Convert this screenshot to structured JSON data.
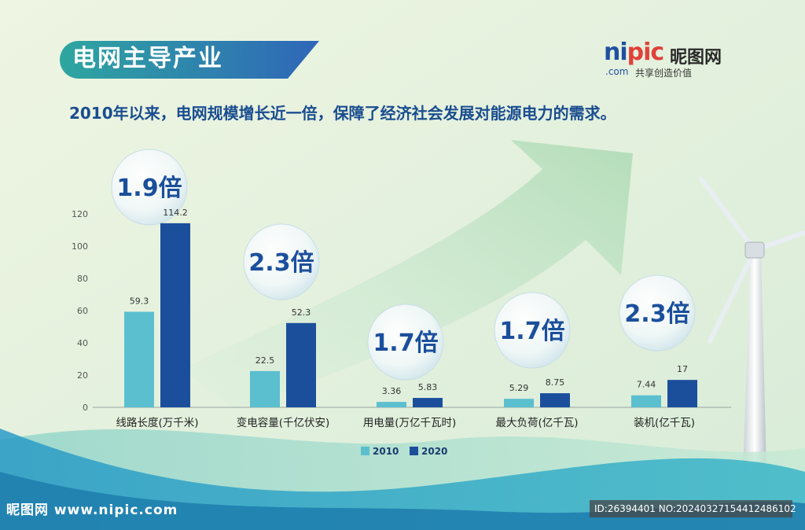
{
  "header": {
    "banner_title": "电网主导产业",
    "subtitle": "2010年以来，电网规模增长近一倍，保障了经济社会发展对能源电力的需求。"
  },
  "logo": {
    "brand_left": "ni",
    "brand_right": "pic",
    "brand_cn": "昵图网",
    "domain": ".com",
    "slogan": "共享创造价值"
  },
  "footer": {
    "watermark": "昵图网 www.nipic.com",
    "id_text": "ID:26394401 NO:20240327154412486102"
  },
  "colors": {
    "series_2010": "#5bbfcf",
    "series_2020": "#1b4f9c",
    "multiplier_text": "#1b4f9c",
    "banner": "#2f7fb6"
  },
  "chart_data": {
    "type": "bar",
    "categories": [
      "线路长度(万千米)",
      "变电容量(千亿伏安)",
      "用电量(万亿千瓦时)",
      "最大负荷(亿千瓦)",
      "装机(亿千瓦)"
    ],
    "series": [
      {
        "name": "2010",
        "values": [
          59.3,
          22.5,
          3.36,
          5.29,
          7.44
        ],
        "labels": [
          "59.3",
          "22.5",
          "3.36",
          "5.29",
          "7.44"
        ]
      },
      {
        "name": "2020",
        "values": [
          114.2,
          52.3,
          5.83,
          8.75,
          17
        ],
        "labels": [
          "114.2",
          "52.3",
          "5.83",
          "8.75",
          "17"
        ]
      }
    ],
    "multipliers": [
      "1.9倍",
      "2.3倍",
      "1.7倍",
      "1.7倍",
      "2.3倍"
    ],
    "yticks": [
      "0",
      "20",
      "40",
      "60",
      "80",
      "100",
      "120"
    ],
    "ylim": [
      0,
      120
    ],
    "legend_position": "bottom-center",
    "grid": false
  }
}
